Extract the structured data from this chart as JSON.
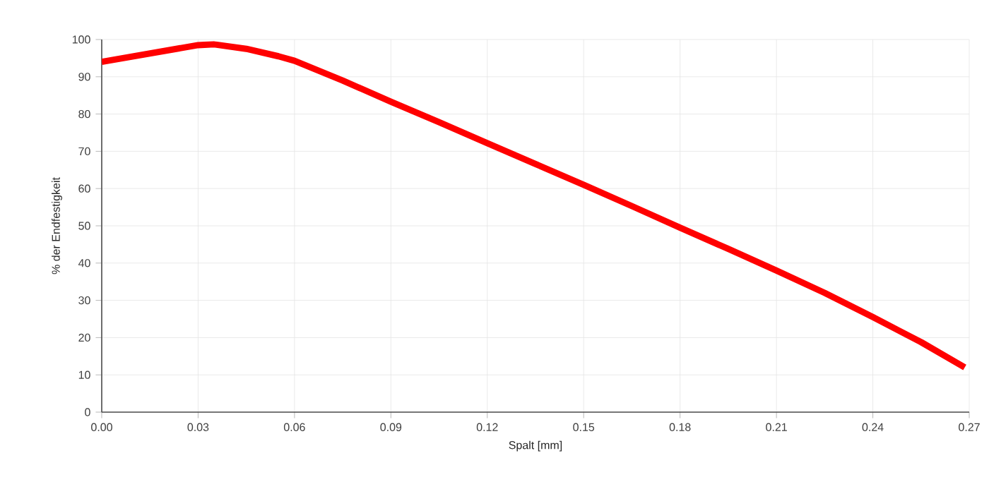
{
  "chart_data": {
    "type": "line",
    "xlabel": "Spalt [mm]",
    "ylabel": "% der Endfestigkeit",
    "x": [
      0,
      0.01,
      0.02,
      0.03,
      0.035,
      0.045,
      0.055,
      0.06,
      0.075,
      0.09,
      0.105,
      0.12,
      0.135,
      0.15,
      0.165,
      0.18,
      0.195,
      0.21,
      0.225,
      0.24,
      0.255,
      0.2686
    ],
    "series": [
      {
        "color": "#ff0000",
        "values": [
          94,
          95.5,
          97,
          98.5,
          98.7,
          97.5,
          95.5,
          94.3,
          89,
          83.3,
          77.8,
          72.2,
          66.6,
          61,
          55.3,
          49.5,
          43.8,
          38,
          32,
          25.5,
          18.8,
          12
        ]
      }
    ],
    "xlim": [
      0,
      0.27
    ],
    "ylim": [
      0,
      100
    ],
    "xticks": [
      {
        "value": 0,
        "label": "0.00"
      },
      0.03,
      0.06,
      0.09,
      0.12,
      0.15,
      0.18,
      0.21,
      0.24,
      0.27
    ],
    "yticks": [
      0,
      10,
      20,
      30,
      40,
      50,
      60,
      70,
      80,
      90,
      100
    ],
    "grid": true,
    "marker": "none",
    "line_style": "solid"
  }
}
